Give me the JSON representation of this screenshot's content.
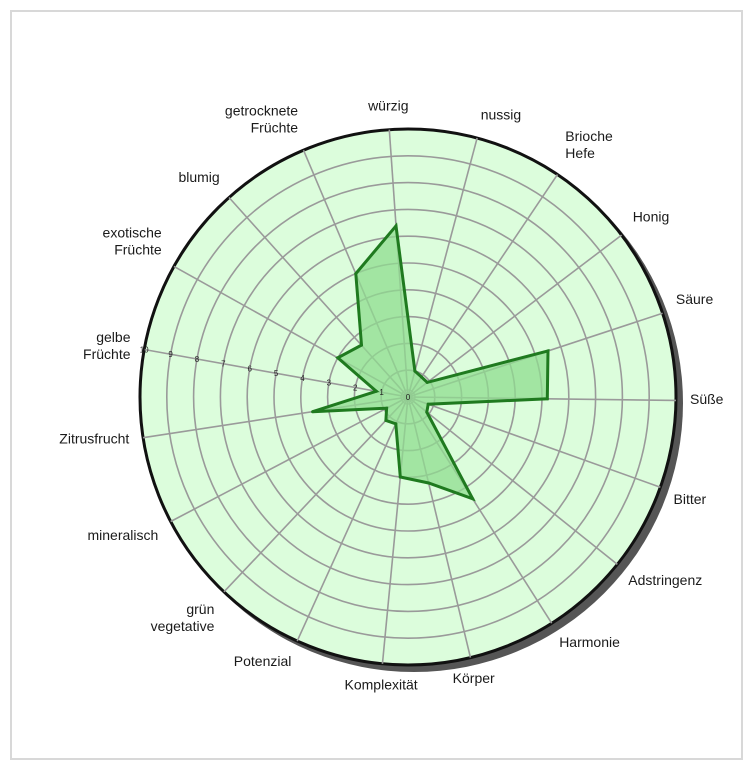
{
  "chart_data": {
    "type": "radar",
    "scale": {
      "min": 0,
      "max": 10,
      "step": 1
    },
    "tick_labels": [
      "0",
      "1",
      "2",
      "3",
      "4",
      "5",
      "6",
      "7",
      "8",
      "9",
      "10"
    ],
    "axes": [
      {
        "label": "würzig",
        "value": 6.4
      },
      {
        "label": "nussig",
        "value": 1.0
      },
      {
        "label": "Brioche Hefe",
        "value": 0.9
      },
      {
        "label": "Honig",
        "value": 0.9
      },
      {
        "label": "Säure",
        "value": 5.5
      },
      {
        "label": "Süße",
        "value": 5.2
      },
      {
        "label": "Bitter",
        "value": 0.8
      },
      {
        "label": "Adstringenz",
        "value": 0.9
      },
      {
        "label": "Harmonie",
        "value": 4.5
      },
      {
        "label": "Körper",
        "value": 3.3
      },
      {
        "label": "Komplexität",
        "value": 3.0
      },
      {
        "label": "Potenzial",
        "value": 1.1
      },
      {
        "label": "grün vegetative",
        "value": 1.2
      },
      {
        "label": "mineralisch",
        "value": 0.9
      },
      {
        "label": "Zitrusfrucht",
        "value": 3.6
      },
      {
        "label": "gelbe Früchte",
        "value": 1.2
      },
      {
        "label": "exotische Früchte",
        "value": 3.0
      },
      {
        "label": "blumig",
        "value": 2.6
      },
      {
        "label": "getrocknete Früchte",
        "value": 5.0
      }
    ],
    "colors": {
      "plot_fill": "#dcfddc",
      "grid": "#9a9a9a",
      "outer_ring": "#111111",
      "shadow": "#555555",
      "data_fill": "#8fdc8f",
      "data_stroke": "#1f7a1f"
    },
    "legend": null,
    "grid": true
  }
}
